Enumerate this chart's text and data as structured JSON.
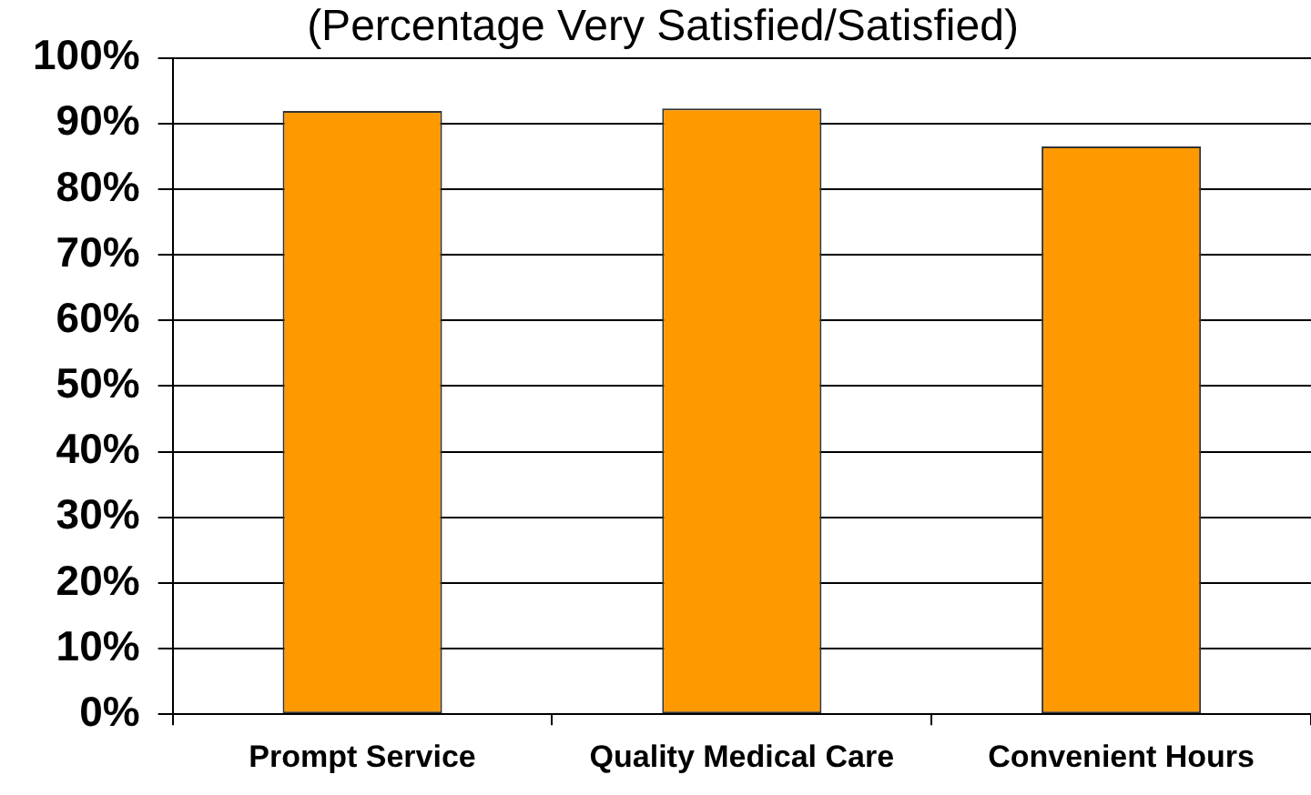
{
  "chart_data": {
    "type": "bar",
    "subtitle": "(Percentage Very Satisfied/Satisfied)",
    "categories": [
      "Prompt Service",
      "Quality Medical Care",
      "Convenient Hours"
    ],
    "values": [
      91.9,
      92.3,
      86.5
    ],
    "color": "#ff9900",
    "ylim": [
      0,
      100
    ],
    "yticks": [
      {
        "value": 0,
        "label": "0%"
      },
      {
        "value": 10,
        "label": "10%"
      },
      {
        "value": 20,
        "label": "20%"
      },
      {
        "value": 30,
        "label": "30%"
      },
      {
        "value": 40,
        "label": "40%"
      },
      {
        "value": 50,
        "label": "50%"
      },
      {
        "value": 60,
        "label": "60%"
      },
      {
        "value": 70,
        "label": "70%"
      },
      {
        "value": 80,
        "label": "80%"
      },
      {
        "value": 90,
        "label": "90%"
      },
      {
        "value": 100,
        "label": "100%"
      }
    ],
    "grid": "y"
  }
}
